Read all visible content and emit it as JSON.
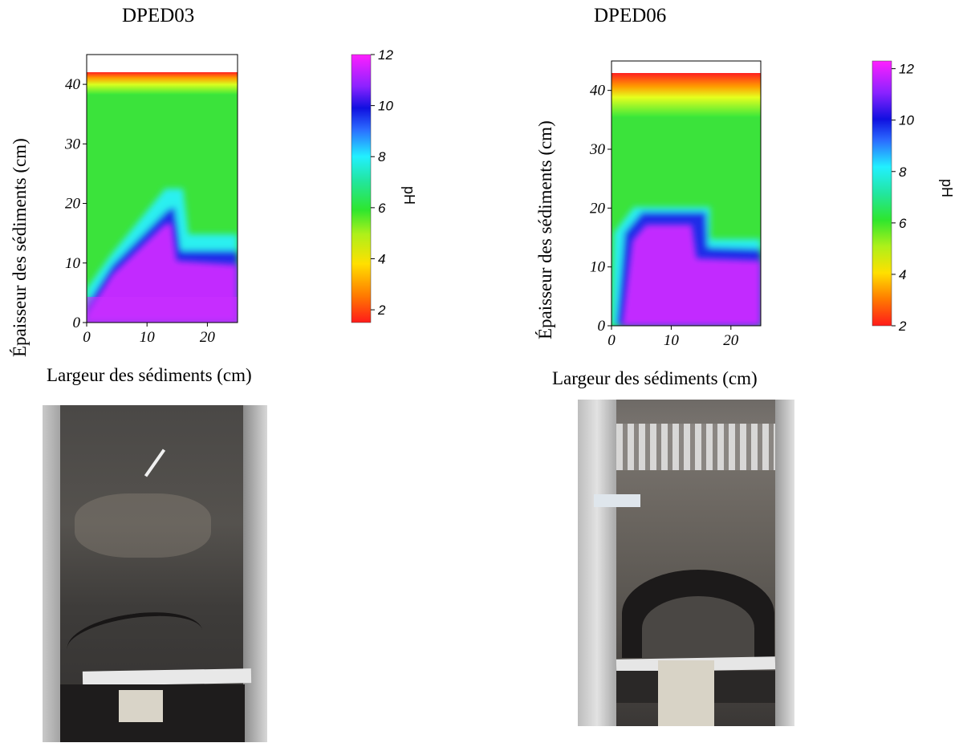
{
  "charts": [
    {
      "title": "DPED03",
      "xlabel": "Largeur des sédiments (cm)",
      "ylabel": "Épaisseur des sédiments (cm)",
      "colorbar_label": "pH"
    },
    {
      "title": "DPED06",
      "xlabel": "Largeur des sédiments (cm)",
      "ylabel": "Épaisseur des sédiments (cm)",
      "colorbar_label": "pH"
    }
  ],
  "chart_data": [
    {
      "type": "heatmap",
      "title": "DPED03",
      "xlabel": "Largeur des sédiments (cm)",
      "ylabel": "Épaisseur des sédiments (cm)",
      "xlim": [
        0,
        25
      ],
      "ylim": [
        0,
        45
      ],
      "xticks": [
        0,
        10,
        20
      ],
      "yticks": [
        0,
        10,
        20,
        30,
        40
      ],
      "sediment_top": 42,
      "colorbar": {
        "label": "pH",
        "range": [
          1.5,
          12
        ],
        "ticks": [
          2,
          4,
          6,
          8,
          10,
          12
        ]
      },
      "zones": [
        {
          "description": "acidic surface layer",
          "y_range": [
            39,
            42
          ],
          "pH": [
            2,
            5
          ]
        },
        {
          "description": "neutral sediment",
          "pH": 6
        },
        {
          "description": "alkaline mound",
          "boundary_x": [
            0,
            4,
            13,
            15,
            25
          ],
          "boundary_y": [
            2,
            8,
            19,
            11,
            11
          ],
          "pH": 12
        }
      ]
    },
    {
      "type": "heatmap",
      "title": "DPED06",
      "xlabel": "Largeur des sédiments (cm)",
      "ylabel": "Épaisseur des sédiments (cm)",
      "xlim": [
        0,
        25
      ],
      "ylim": [
        0,
        45
      ],
      "xticks": [
        0,
        10,
        20
      ],
      "yticks": [
        0,
        10,
        20,
        30,
        40
      ],
      "sediment_top": 43,
      "colorbar": {
        "label": "pH",
        "range": [
          2,
          12.3
        ],
        "ticks": [
          2,
          4,
          6,
          8,
          10,
          12
        ]
      },
      "zones": [
        {
          "description": "acidic surface layer",
          "y_range": [
            36,
            43
          ],
          "pH": [
            2,
            5
          ]
        },
        {
          "description": "neutral sediment",
          "pH": 6
        },
        {
          "description": "alkaline mound",
          "boundary_x": [
            0,
            1,
            5,
            15,
            25
          ],
          "boundary_y": [
            0,
            15,
            18,
            11,
            11
          ],
          "pH": 12
        }
      ]
    }
  ]
}
